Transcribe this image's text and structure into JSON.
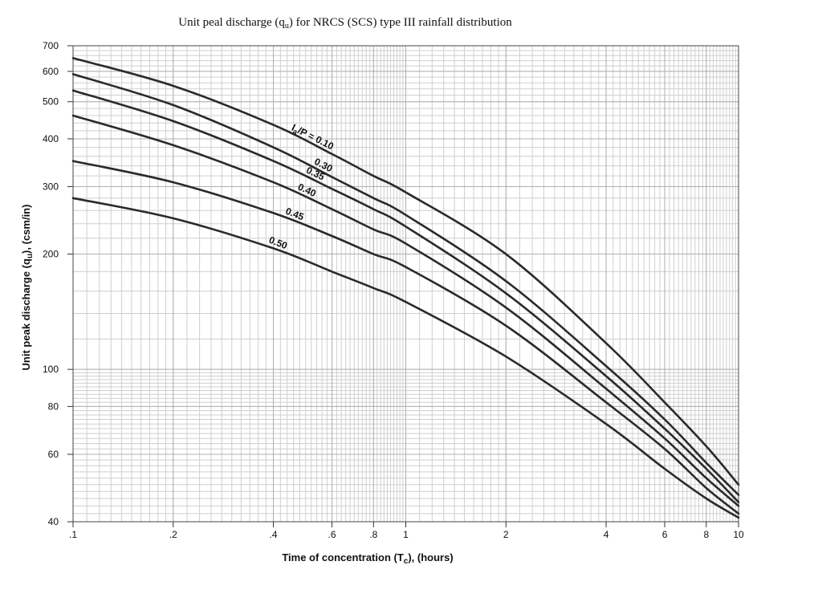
{
  "chart_data": {
    "type": "line",
    "title": "Unit peal discharge (q",
    "title_sub": "u",
    "title_rest": ") for NRCS (SCS) type III rainfall distribution",
    "xlabel": "Time of concentration (T",
    "xlabel_sub": "c",
    "xlabel_rest": "), (hours)",
    "ylabel": "Unit peak discharge (q",
    "ylabel_sub": "u",
    "ylabel_rest": "), (csm/in)",
    "x_scale": "log",
    "y_scale": "log",
    "xlim": [
      0.1,
      10
    ],
    "ylim": [
      40,
      700
    ],
    "grid": true,
    "x_ticks": [
      {
        "value": 0.1,
        "label": ".1"
      },
      {
        "value": 0.2,
        "label": ".2"
      },
      {
        "value": 0.4,
        "label": ".4"
      },
      {
        "value": 0.6,
        "label": ".6"
      },
      {
        "value": 0.8,
        "label": ".8"
      },
      {
        "value": 1,
        "label": "1"
      },
      {
        "value": 2,
        "label": "2"
      },
      {
        "value": 4,
        "label": "4"
      },
      {
        "value": 6,
        "label": "6"
      },
      {
        "value": 8,
        "label": "8"
      },
      {
        "value": 10,
        "label": "10"
      }
    ],
    "y_ticks": [
      {
        "value": 40,
        "label": "40"
      },
      {
        "value": 60,
        "label": "60"
      },
      {
        "value": 80,
        "label": "80"
      },
      {
        "value": 100,
        "label": "100"
      },
      {
        "value": 200,
        "label": "200"
      },
      {
        "value": 300,
        "label": "300"
      },
      {
        "value": 400,
        "label": "400"
      },
      {
        "value": 500,
        "label": "500"
      },
      {
        "value": 600,
        "label": "600"
      },
      {
        "value": 700,
        "label": "700"
      }
    ],
    "series": [
      {
        "name": "I",
        "name_sub": "a",
        "name_rest": "/P = 0.10",
        "x": [
          0.1,
          0.2,
          0.4,
          0.6,
          0.8,
          1,
          2,
          4,
          6,
          8,
          10
        ],
        "y": [
          650,
          550,
          435,
          365,
          320,
          290,
          200,
          117,
          82,
          63,
          50
        ]
      },
      {
        "name": "0.30",
        "x": [
          0.1,
          0.2,
          0.4,
          0.6,
          0.8,
          1,
          2,
          4,
          6,
          8,
          10
        ],
        "y": [
          590,
          490,
          380,
          318,
          280,
          253,
          170,
          102,
          74,
          57,
          47
        ]
      },
      {
        "name": "0.35",
        "x": [
          0.1,
          0.2,
          0.4,
          0.6,
          0.8,
          1,
          2,
          4,
          6,
          8,
          10
        ],
        "y": [
          535,
          445,
          350,
          296,
          262,
          236,
          158,
          96,
          70,
          55,
          45
        ]
      },
      {
        "name": "0.40",
        "x": [
          0.1,
          0.2,
          0.4,
          0.6,
          0.8,
          1,
          2,
          4,
          6,
          8,
          10
        ],
        "y": [
          460,
          385,
          308,
          262,
          232,
          213,
          145,
          89,
          66,
          52,
          44
        ]
      },
      {
        "name": "0.45",
        "x": [
          0.1,
          0.2,
          0.4,
          0.6,
          0.8,
          1,
          2,
          4,
          6,
          8,
          10
        ],
        "y": [
          350,
          308,
          256,
          223,
          200,
          185,
          130,
          82,
          62,
          49,
          42
        ]
      },
      {
        "name": "0.50",
        "x": [
          0.1,
          0.2,
          0.4,
          0.6,
          0.8,
          1,
          2,
          4,
          6,
          8,
          10
        ],
        "y": [
          280,
          248,
          207,
          180,
          163,
          150,
          108,
          72,
          55,
          46,
          41
        ]
      }
    ]
  }
}
